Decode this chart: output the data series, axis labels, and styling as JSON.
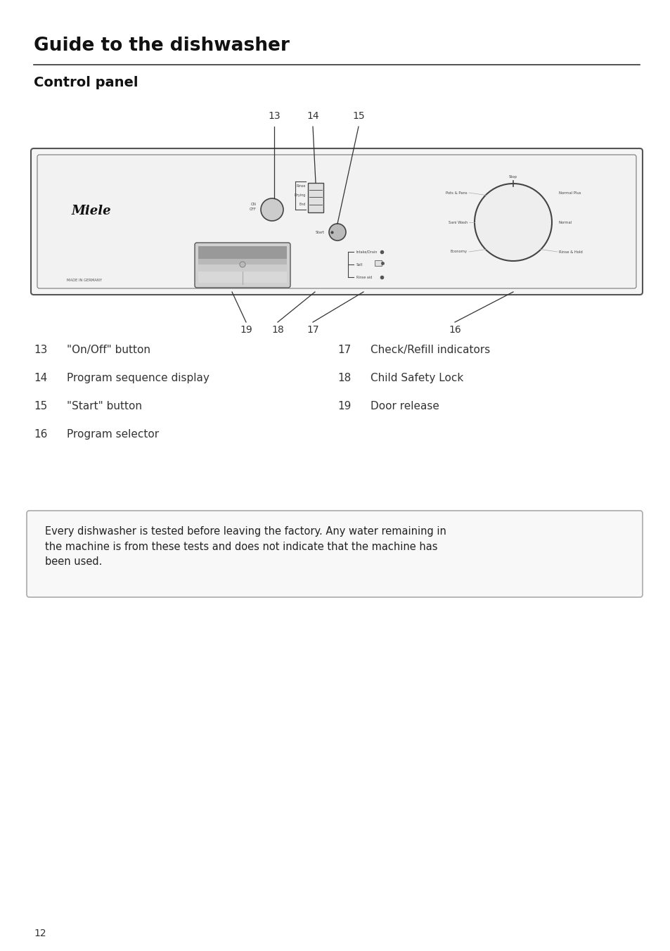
{
  "title": "Guide to the dishwasher",
  "subtitle": "Control panel",
  "bg_color": "#ffffff",
  "text_color": "#111111",
  "page_number": "12",
  "title_fontsize": 19,
  "subtitle_fontsize": 14,
  "items_left": [
    {
      "num": "13",
      "label": "\"On/Off\" button"
    },
    {
      "num": "14",
      "label": "Program sequence display"
    },
    {
      "num": "15",
      "label": "\"Start\" button"
    },
    {
      "num": "16",
      "label": "Program selector"
    }
  ],
  "items_right": [
    {
      "num": "17",
      "label": "Check/Refill indicators"
    },
    {
      "num": "18",
      "label": "Child Safety Lock"
    },
    {
      "num": "19",
      "label": "Door release"
    }
  ],
  "note_text": "Every dishwasher is tested before leaving the factory. Any water remaining in\nthe machine is from these tests and does not indicate that the machine has\nbeen used.",
  "panel_programs": [
    {
      "label": "Pots & Pans",
      "side": "left"
    },
    {
      "label": "Stop",
      "side": "top"
    },
    {
      "label": "Normal Plus",
      "side": "right"
    },
    {
      "label": "Sani Wash",
      "side": "left"
    },
    {
      "label": "Normal",
      "side": "right"
    },
    {
      "label": "Economy",
      "side": "left"
    },
    {
      "label": "Rinse & Hold",
      "side": "right"
    }
  ]
}
